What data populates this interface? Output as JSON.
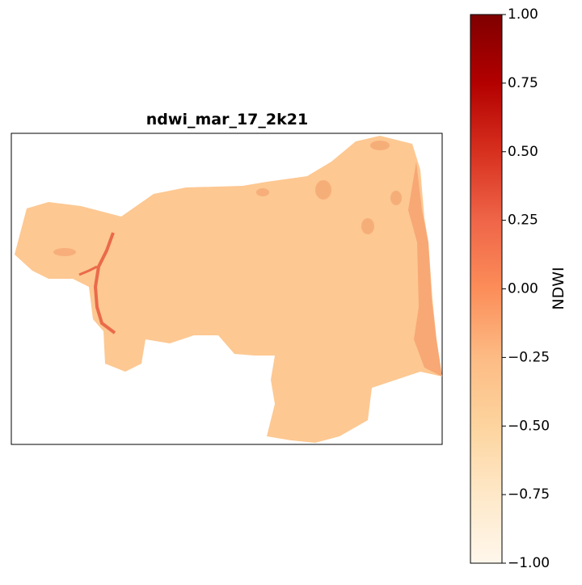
{
  "title": "ndwi_mar_17_2k21",
  "colorbar": {
    "label": "NDWI",
    "lim": [
      -1,
      1
    ],
    "ticks": [
      {
        "value": -1,
        "label": "−1.00"
      },
      {
        "value": -0.75,
        "label": "−0.75"
      },
      {
        "value": -0.5,
        "label": "−0.50"
      },
      {
        "value": -0.25,
        "label": "−0.25"
      },
      {
        "value": 0,
        "label": "0.00"
      },
      {
        "value": 0.25,
        "label": "0.25"
      },
      {
        "value": 0.5,
        "label": "0.50"
      },
      {
        "value": 0.75,
        "label": "0.75"
      },
      {
        "value": 1,
        "label": "1.00"
      }
    ],
    "colors": [
      "#fff7ec",
      "#fee8c8",
      "#fdd49e",
      "#fdbb84",
      "#fc8d59",
      "#ef6548",
      "#d7301f",
      "#b30000",
      "#7f0000"
    ]
  }
}
